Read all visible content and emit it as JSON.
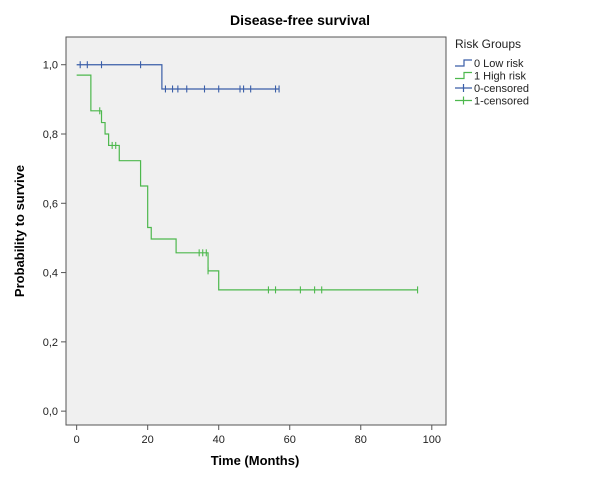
{
  "chart_data": {
    "type": "line",
    "title": "Disease-free survival",
    "xlabel": "Time (Months)",
    "ylabel": "Probability to survive",
    "xlim": [
      -3,
      104
    ],
    "ylim": [
      -0.04,
      1.08
    ],
    "x_ticks": [
      0,
      20,
      40,
      60,
      80,
      100
    ],
    "x_tick_labels": [
      "0",
      "20",
      "40",
      "60",
      "80",
      "100"
    ],
    "y_ticks": [
      0,
      0.2,
      0.4,
      0.6,
      0.8,
      1.0
    ],
    "y_tick_labels": [
      "0,0",
      "0,2",
      "0,4",
      "0,6",
      "0,8",
      "1,0"
    ],
    "grid": false,
    "legend": {
      "title": "Risk Groups",
      "placement": "right",
      "entries": [
        {
          "label": "0 Low risk",
          "color": "#3a5ea8",
          "kind": "step"
        },
        {
          "label": "1 High risk",
          "color": "#4db84d",
          "kind": "step"
        },
        {
          "label": "0-censored",
          "color": "#3a5ea8",
          "kind": "censor"
        },
        {
          "label": "1-censored",
          "color": "#4db84d",
          "kind": "censor"
        }
      ]
    },
    "series": [
      {
        "name": "0 Low risk",
        "color": "#3a5ea8",
        "steps": [
          [
            0,
            1.0
          ],
          [
            24,
            0.93
          ],
          [
            57,
            0.93
          ]
        ],
        "censored": [
          [
            1,
            1.0
          ],
          [
            3,
            1.0
          ],
          [
            7,
            1.0
          ],
          [
            18,
            1.0
          ],
          [
            25,
            0.93
          ],
          [
            27,
            0.93
          ],
          [
            28.5,
            0.93
          ],
          [
            31,
            0.93
          ],
          [
            36,
            0.93
          ],
          [
            40,
            0.93
          ],
          [
            46,
            0.93
          ],
          [
            47,
            0.93
          ],
          [
            49,
            0.93
          ],
          [
            56,
            0.93
          ],
          [
            57,
            0.93
          ]
        ]
      },
      {
        "name": "1 High risk",
        "color": "#4db84d",
        "steps": [
          [
            0,
            0.97
          ],
          [
            4,
            0.867
          ],
          [
            7,
            0.833
          ],
          [
            8,
            0.8
          ],
          [
            9,
            0.767
          ],
          [
            12,
            0.723
          ],
          [
            18,
            0.65
          ],
          [
            20,
            0.53
          ],
          [
            21,
            0.497
          ],
          [
            28,
            0.457
          ],
          [
            37,
            0.405
          ],
          [
            40,
            0.35
          ],
          [
            96,
            0.35
          ]
        ],
        "censored": [
          [
            6.5,
            0.867
          ],
          [
            10,
            0.767
          ],
          [
            11,
            0.767
          ],
          [
            34.5,
            0.457
          ],
          [
            35.5,
            0.457
          ],
          [
            36.5,
            0.457
          ],
          [
            37,
            0.405
          ],
          [
            54,
            0.35
          ],
          [
            56,
            0.35
          ],
          [
            63,
            0.35
          ],
          [
            67,
            0.35
          ],
          [
            69,
            0.35
          ],
          [
            96,
            0.35
          ]
        ]
      }
    ]
  },
  "colors": {
    "plot_background": "#f0f0f0",
    "axis_line": "#555555"
  }
}
